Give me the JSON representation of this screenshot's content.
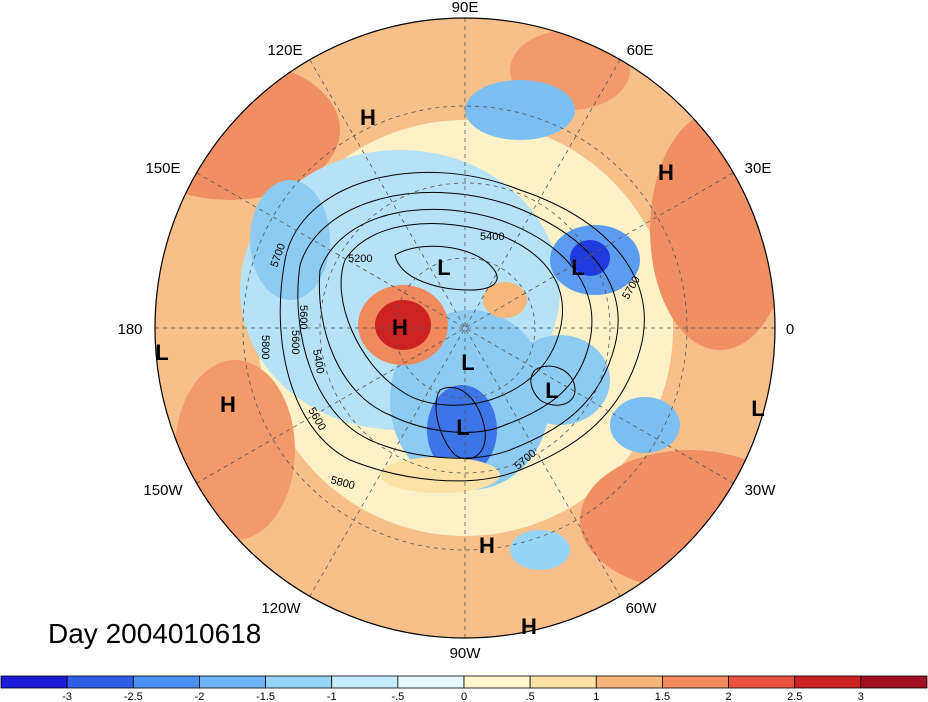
{
  "map": {
    "projection": "north-polar-stereographic",
    "longitude_labels": [
      "90E",
      "60E",
      "30E",
      "0",
      "30W",
      "60W",
      "90W",
      "120W",
      "150W",
      "180",
      "150E",
      "120E"
    ],
    "contour_labels": [
      "5400",
      "5200",
      "5700",
      "5800",
      "5600",
      "5400",
      "5800",
      "5600",
      "5700",
      "5600",
      "5700"
    ],
    "pressure_systems": [
      {
        "type": "H",
        "label": "H"
      },
      {
        "type": "H",
        "label": "H"
      },
      {
        "type": "L",
        "label": "L"
      },
      {
        "type": "L",
        "label": "L"
      },
      {
        "type": "H",
        "label": "H"
      },
      {
        "type": "L",
        "label": "L"
      },
      {
        "type": "L",
        "label": "L"
      },
      {
        "type": "L",
        "label": "L"
      },
      {
        "type": "L",
        "label": "L"
      },
      {
        "type": "H",
        "label": "H"
      },
      {
        "type": "L",
        "label": "L"
      },
      {
        "type": "H",
        "label": "H"
      },
      {
        "type": "H",
        "label": "H"
      }
    ]
  },
  "timestamp_label": "Day 2004010618",
  "colorbar": {
    "tick_labels": [
      "-3",
      "-2.5",
      "-2",
      "-1.5",
      "-1",
      "-.5",
      "0",
      ".5",
      "1",
      "1.5",
      "2",
      "2.5",
      "3"
    ],
    "colors": [
      "#1b1bd6",
      "#2f5fe6",
      "#4b8ff0",
      "#6cb4f5",
      "#96d4f8",
      "#c4ecfa",
      "#e6f8fc",
      "#fdf6cf",
      "#fce2a6",
      "#f7b77a",
      "#f08a5c",
      "#e8513f",
      "#cc2222",
      "#a01020"
    ]
  }
}
